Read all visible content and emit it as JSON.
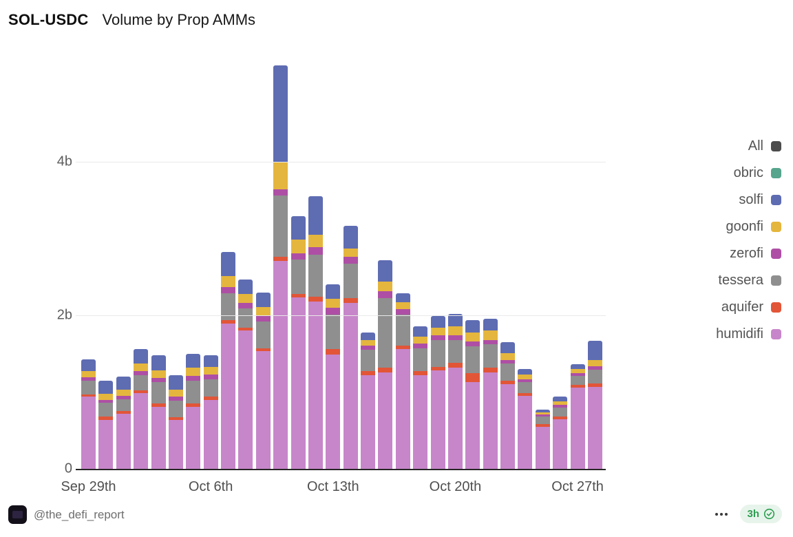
{
  "header": {
    "title_bold": "SOL-USDC",
    "title_rest": "Volume by Prop AMMs"
  },
  "chart_data": {
    "type": "bar",
    "stacked": true,
    "title": "SOL-USDC Volume by Prop AMMs",
    "y_unit": "billions",
    "ylim": [
      0,
      5.4
    ],
    "grid": "horizontal",
    "legend_position": "right",
    "x": [
      "Sep 29",
      "Sep 30",
      "Oct 1",
      "Oct 2",
      "Oct 3",
      "Oct 4",
      "Oct 5",
      "Oct 6",
      "Oct 7",
      "Oct 8",
      "Oct 9",
      "Oct 10",
      "Oct 11",
      "Oct 12",
      "Oct 13",
      "Oct 14",
      "Oct 15",
      "Oct 16",
      "Oct 17",
      "Oct 18",
      "Oct 19",
      "Oct 20",
      "Oct 21",
      "Oct 22",
      "Oct 23",
      "Oct 24",
      "Oct 25",
      "Oct 26",
      "Oct 27",
      "Oct 28"
    ],
    "x_tick_labels": [
      {
        "index": 0,
        "label": "Sep 29th"
      },
      {
        "index": 7,
        "label": "Oct 6th"
      },
      {
        "index": 14,
        "label": "Oct 13th"
      },
      {
        "index": 21,
        "label": "Oct 20th"
      },
      {
        "index": 28,
        "label": "Oct 27th"
      }
    ],
    "y_ticks": [
      {
        "value": 0,
        "label": "0"
      },
      {
        "value": 2,
        "label": "2b"
      },
      {
        "value": 4,
        "label": "4b"
      }
    ],
    "series": [
      {
        "name": "humidifi",
        "color": "#c786ca",
        "values": [
          0.94,
          0.64,
          0.72,
          0.99,
          0.81,
          0.64,
          0.81,
          0.9,
          1.89,
          1.8,
          1.53,
          2.71,
          2.23,
          2.18,
          1.49,
          2.16,
          1.22,
          1.26,
          1.56,
          1.22,
          1.28,
          1.32,
          1.13,
          1.26,
          1.1,
          0.95,
          0.55,
          0.65,
          1.06,
          1.07
        ]
      },
      {
        "name": "aquifer",
        "color": "#e25537",
        "values": [
          0.03,
          0.04,
          0.03,
          0.03,
          0.04,
          0.03,
          0.04,
          0.04,
          0.05,
          0.04,
          0.04,
          0.05,
          0.05,
          0.06,
          0.07,
          0.06,
          0.05,
          0.06,
          0.05,
          0.05,
          0.05,
          0.06,
          0.12,
          0.06,
          0.05,
          0.04,
          0.03,
          0.03,
          0.03,
          0.04
        ]
      },
      {
        "name": "tessera",
        "color": "#8f8f8f",
        "values": [
          0.18,
          0.18,
          0.16,
          0.2,
          0.28,
          0.22,
          0.3,
          0.23,
          0.35,
          0.25,
          0.35,
          0.8,
          0.45,
          0.55,
          0.45,
          0.45,
          0.28,
          0.9,
          0.4,
          0.3,
          0.35,
          0.3,
          0.35,
          0.3,
          0.22,
          0.14,
          0.1,
          0.12,
          0.12,
          0.18
        ]
      },
      {
        "name": "zerofi",
        "color": "#ae4fa5",
        "values": [
          0.04,
          0.04,
          0.04,
          0.05,
          0.05,
          0.05,
          0.06,
          0.06,
          0.08,
          0.07,
          0.07,
          0.08,
          0.08,
          0.1,
          0.09,
          0.09,
          0.06,
          0.09,
          0.07,
          0.06,
          0.06,
          0.06,
          0.06,
          0.06,
          0.05,
          0.04,
          0.03,
          0.03,
          0.04,
          0.05
        ]
      },
      {
        "name": "goonfi",
        "color": "#e5b63d",
        "values": [
          0.08,
          0.08,
          0.08,
          0.1,
          0.1,
          0.09,
          0.11,
          0.1,
          0.14,
          0.12,
          0.12,
          0.36,
          0.18,
          0.16,
          0.12,
          0.11,
          0.07,
          0.13,
          0.09,
          0.09,
          0.1,
          0.12,
          0.12,
          0.12,
          0.09,
          0.06,
          0.03,
          0.05,
          0.05,
          0.08
        ]
      },
      {
        "name": "solfi",
        "color": "#5e6cb2",
        "values": [
          0.16,
          0.17,
          0.17,
          0.19,
          0.2,
          0.19,
          0.18,
          0.15,
          0.32,
          0.19,
          0.19,
          1.26,
          0.3,
          0.5,
          0.18,
          0.3,
          0.1,
          0.28,
          0.12,
          0.14,
          0.15,
          0.16,
          0.16,
          0.16,
          0.14,
          0.07,
          0.03,
          0.06,
          0.06,
          0.25
        ]
      },
      {
        "name": "obric",
        "color": "#56a58c",
        "values": [
          0,
          0,
          0,
          0,
          0,
          0,
          0,
          0,
          0,
          0,
          0,
          0,
          0,
          0,
          0,
          0,
          0,
          0,
          0,
          0,
          0,
          0,
          0,
          0,
          0,
          0,
          0,
          0,
          0,
          0
        ]
      }
    ]
  },
  "legend": {
    "items": [
      {
        "label": "All",
        "color": "#4c4c4c"
      },
      {
        "label": "obric",
        "color": "#56a58c"
      },
      {
        "label": "solfi",
        "color": "#5e6cb2"
      },
      {
        "label": "goonfi",
        "color": "#e5b63d"
      },
      {
        "label": "zerofi",
        "color": "#ae4fa5"
      },
      {
        "label": "tessera",
        "color": "#8f8f8f"
      },
      {
        "label": "aquifer",
        "color": "#e25537"
      },
      {
        "label": "humidifi",
        "color": "#c786ca"
      }
    ]
  },
  "footer": {
    "handle": "@the_defi_report",
    "menu_icon": "ellipsis-icon",
    "badge": {
      "text": "3h",
      "icon": "clock-check-icon",
      "color": "#2d9e50",
      "bg": "#e7f4eb"
    }
  }
}
